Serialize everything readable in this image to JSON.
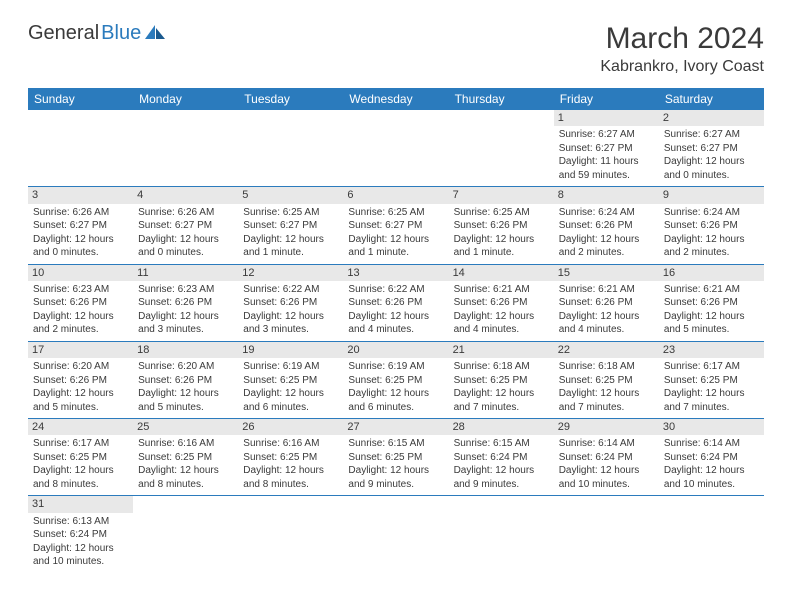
{
  "logo": {
    "text1": "General",
    "text2": "Blue"
  },
  "title": "March 2024",
  "location": "Kabrankro, Ivory Coast",
  "colors": {
    "header_bg": "#2b7bbd",
    "header_text": "#ffffff",
    "daynum_bg": "#e8e8e8",
    "text": "#3a3a3a",
    "border": "#2b7bbd"
  },
  "day_names": [
    "Sunday",
    "Monday",
    "Tuesday",
    "Wednesday",
    "Thursday",
    "Friday",
    "Saturday"
  ],
  "weeks": [
    [
      null,
      null,
      null,
      null,
      null,
      {
        "n": "1",
        "sr": "Sunrise: 6:27 AM",
        "ss": "Sunset: 6:27 PM",
        "dl": "Daylight: 11 hours and 59 minutes."
      },
      {
        "n": "2",
        "sr": "Sunrise: 6:27 AM",
        "ss": "Sunset: 6:27 PM",
        "dl": "Daylight: 12 hours and 0 minutes."
      }
    ],
    [
      {
        "n": "3",
        "sr": "Sunrise: 6:26 AM",
        "ss": "Sunset: 6:27 PM",
        "dl": "Daylight: 12 hours and 0 minutes."
      },
      {
        "n": "4",
        "sr": "Sunrise: 6:26 AM",
        "ss": "Sunset: 6:27 PM",
        "dl": "Daylight: 12 hours and 0 minutes."
      },
      {
        "n": "5",
        "sr": "Sunrise: 6:25 AM",
        "ss": "Sunset: 6:27 PM",
        "dl": "Daylight: 12 hours and 1 minute."
      },
      {
        "n": "6",
        "sr": "Sunrise: 6:25 AM",
        "ss": "Sunset: 6:27 PM",
        "dl": "Daylight: 12 hours and 1 minute."
      },
      {
        "n": "7",
        "sr": "Sunrise: 6:25 AM",
        "ss": "Sunset: 6:26 PM",
        "dl": "Daylight: 12 hours and 1 minute."
      },
      {
        "n": "8",
        "sr": "Sunrise: 6:24 AM",
        "ss": "Sunset: 6:26 PM",
        "dl": "Daylight: 12 hours and 2 minutes."
      },
      {
        "n": "9",
        "sr": "Sunrise: 6:24 AM",
        "ss": "Sunset: 6:26 PM",
        "dl": "Daylight: 12 hours and 2 minutes."
      }
    ],
    [
      {
        "n": "10",
        "sr": "Sunrise: 6:23 AM",
        "ss": "Sunset: 6:26 PM",
        "dl": "Daylight: 12 hours and 2 minutes."
      },
      {
        "n": "11",
        "sr": "Sunrise: 6:23 AM",
        "ss": "Sunset: 6:26 PM",
        "dl": "Daylight: 12 hours and 3 minutes."
      },
      {
        "n": "12",
        "sr": "Sunrise: 6:22 AM",
        "ss": "Sunset: 6:26 PM",
        "dl": "Daylight: 12 hours and 3 minutes."
      },
      {
        "n": "13",
        "sr": "Sunrise: 6:22 AM",
        "ss": "Sunset: 6:26 PM",
        "dl": "Daylight: 12 hours and 4 minutes."
      },
      {
        "n": "14",
        "sr": "Sunrise: 6:21 AM",
        "ss": "Sunset: 6:26 PM",
        "dl": "Daylight: 12 hours and 4 minutes."
      },
      {
        "n": "15",
        "sr": "Sunrise: 6:21 AM",
        "ss": "Sunset: 6:26 PM",
        "dl": "Daylight: 12 hours and 4 minutes."
      },
      {
        "n": "16",
        "sr": "Sunrise: 6:21 AM",
        "ss": "Sunset: 6:26 PM",
        "dl": "Daylight: 12 hours and 5 minutes."
      }
    ],
    [
      {
        "n": "17",
        "sr": "Sunrise: 6:20 AM",
        "ss": "Sunset: 6:26 PM",
        "dl": "Daylight: 12 hours and 5 minutes."
      },
      {
        "n": "18",
        "sr": "Sunrise: 6:20 AM",
        "ss": "Sunset: 6:26 PM",
        "dl": "Daylight: 12 hours and 5 minutes."
      },
      {
        "n": "19",
        "sr": "Sunrise: 6:19 AM",
        "ss": "Sunset: 6:25 PM",
        "dl": "Daylight: 12 hours and 6 minutes."
      },
      {
        "n": "20",
        "sr": "Sunrise: 6:19 AM",
        "ss": "Sunset: 6:25 PM",
        "dl": "Daylight: 12 hours and 6 minutes."
      },
      {
        "n": "21",
        "sr": "Sunrise: 6:18 AM",
        "ss": "Sunset: 6:25 PM",
        "dl": "Daylight: 12 hours and 7 minutes."
      },
      {
        "n": "22",
        "sr": "Sunrise: 6:18 AM",
        "ss": "Sunset: 6:25 PM",
        "dl": "Daylight: 12 hours and 7 minutes."
      },
      {
        "n": "23",
        "sr": "Sunrise: 6:17 AM",
        "ss": "Sunset: 6:25 PM",
        "dl": "Daylight: 12 hours and 7 minutes."
      }
    ],
    [
      {
        "n": "24",
        "sr": "Sunrise: 6:17 AM",
        "ss": "Sunset: 6:25 PM",
        "dl": "Daylight: 12 hours and 8 minutes."
      },
      {
        "n": "25",
        "sr": "Sunrise: 6:16 AM",
        "ss": "Sunset: 6:25 PM",
        "dl": "Daylight: 12 hours and 8 minutes."
      },
      {
        "n": "26",
        "sr": "Sunrise: 6:16 AM",
        "ss": "Sunset: 6:25 PM",
        "dl": "Daylight: 12 hours and 8 minutes."
      },
      {
        "n": "27",
        "sr": "Sunrise: 6:15 AM",
        "ss": "Sunset: 6:25 PM",
        "dl": "Daylight: 12 hours and 9 minutes."
      },
      {
        "n": "28",
        "sr": "Sunrise: 6:15 AM",
        "ss": "Sunset: 6:24 PM",
        "dl": "Daylight: 12 hours and 9 minutes."
      },
      {
        "n": "29",
        "sr": "Sunrise: 6:14 AM",
        "ss": "Sunset: 6:24 PM",
        "dl": "Daylight: 12 hours and 10 minutes."
      },
      {
        "n": "30",
        "sr": "Sunrise: 6:14 AM",
        "ss": "Sunset: 6:24 PM",
        "dl": "Daylight: 12 hours and 10 minutes."
      }
    ],
    [
      {
        "n": "31",
        "sr": "Sunrise: 6:13 AM",
        "ss": "Sunset: 6:24 PM",
        "dl": "Daylight: 12 hours and 10 minutes."
      },
      null,
      null,
      null,
      null,
      null,
      null
    ]
  ]
}
